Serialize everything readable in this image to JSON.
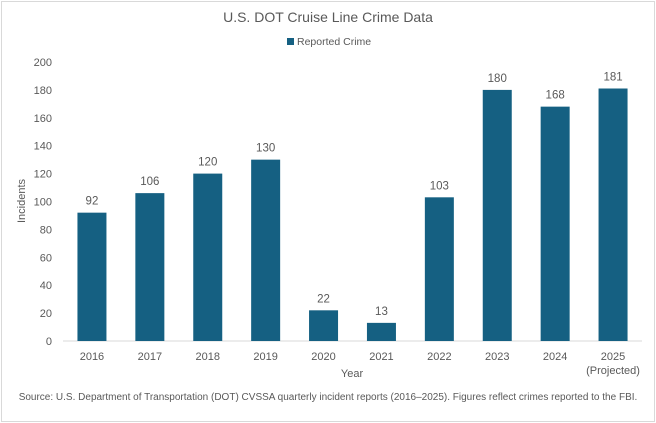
{
  "chart_data": {
    "type": "bar",
    "title": "U.S. DOT Cruise Line Crime Data",
    "xlabel": "Year",
    "ylabel": "Incidents",
    "categories": [
      "2016",
      "2017",
      "2018",
      "2019",
      "2020",
      "2021",
      "2022",
      "2023",
      "2024",
      "2025 (Projected)"
    ],
    "series": [
      {
        "name": "Reported Crime",
        "values": [
          92,
          106,
          120,
          130,
          22,
          13,
          103,
          180,
          168,
          181
        ],
        "color": "#156082"
      }
    ],
    "ylim": [
      0,
      200
    ],
    "yticks": [
      0,
      20,
      40,
      60,
      80,
      100,
      120,
      140,
      160,
      180,
      200
    ],
    "grid": false,
    "legend": "top",
    "data_labels": true
  },
  "source_note": "Source: U.S. Department of Transportation (DOT) CVSSA quarterly incident reports (2016–2025). Figures reflect crimes reported to the FBI."
}
